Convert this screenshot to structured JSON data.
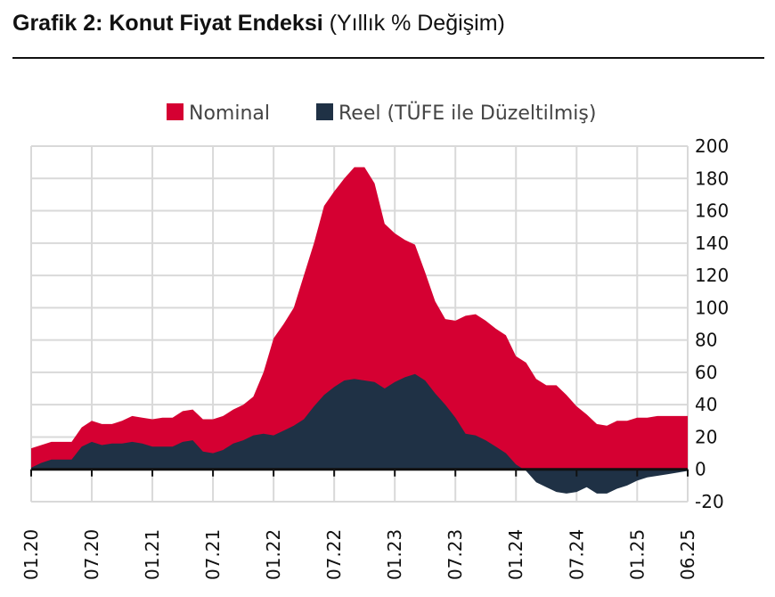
{
  "title": {
    "bold": "Grafik 2: Konut Fiyat Endeksi",
    "regular": " (Yıllık % Değişim)"
  },
  "chart_data": {
    "type": "area",
    "x_tick_labels": [
      "01.20",
      "07.20",
      "01.21",
      "07.21",
      "01.22",
      "07.22",
      "01.23",
      "07.23",
      "01.24",
      "07.24",
      "01.25",
      "06.25"
    ],
    "x": [
      "01.20",
      "02.20",
      "03.20",
      "04.20",
      "05.20",
      "06.20",
      "07.20",
      "08.20",
      "09.20",
      "10.20",
      "11.20",
      "12.20",
      "01.21",
      "02.21",
      "03.21",
      "04.21",
      "05.21",
      "06.21",
      "07.21",
      "08.21",
      "09.21",
      "10.21",
      "11.21",
      "12.21",
      "01.22",
      "02.22",
      "03.22",
      "04.22",
      "05.22",
      "06.22",
      "07.22",
      "08.22",
      "09.22",
      "10.22",
      "11.22",
      "12.22",
      "01.23",
      "02.23",
      "03.23",
      "04.23",
      "05.23",
      "06.23",
      "07.23",
      "08.23",
      "09.23",
      "10.23",
      "11.23",
      "12.23",
      "01.24",
      "02.24",
      "03.24",
      "04.24",
      "05.24",
      "06.24",
      "07.24",
      "08.24",
      "09.24",
      "10.24",
      "11.24",
      "12.24",
      "01.25",
      "02.25",
      "03.25",
      "04.25",
      "05.25",
      "06.25"
    ],
    "series": [
      {
        "name": "Nominal",
        "color": "#d50032",
        "values": [
          13,
          15,
          17,
          17,
          17,
          26,
          30,
          28,
          28,
          30,
          33,
          32,
          31,
          32,
          32,
          36,
          37,
          31,
          31,
          33,
          37,
          40,
          45,
          60,
          81,
          90,
          100,
          120,
          140,
          163,
          172,
          180,
          187,
          187,
          177,
          152,
          146,
          142,
          139,
          122,
          104,
          93,
          92,
          95,
          96,
          92,
          87,
          83,
          70,
          66,
          56,
          52,
          52,
          46,
          39,
          34,
          28,
          27,
          30,
          30,
          32,
          32,
          33,
          33,
          33,
          33
        ]
      },
      {
        "name": "Reel (TÜFE ile Düzeltilmiş)",
        "color": "#1f3145",
        "values": [
          1,
          4,
          6,
          6,
          6,
          14,
          17,
          15,
          16,
          16,
          17,
          16,
          14,
          14,
          14,
          17,
          18,
          11,
          10,
          12,
          16,
          18,
          21,
          22,
          21,
          24,
          27,
          31,
          39,
          46,
          51,
          55,
          56,
          55,
          54,
          50,
          54,
          57,
          59,
          55,
          47,
          40,
          32,
          22,
          21,
          18,
          14,
          10,
          3,
          -1,
          -8,
          -11,
          -14,
          -15,
          -14,
          -11,
          -15,
          -15,
          -12,
          -10,
          -7,
          -5,
          -4,
          -3,
          -2,
          -1
        ]
      }
    ],
    "y_ticks": [
      200,
      180,
      160,
      140,
      120,
      100,
      80,
      60,
      40,
      20,
      0,
      -20
    ],
    "ylim": [
      -20,
      200
    ],
    "y_axis_position": "right",
    "grid": true,
    "legend": "top"
  }
}
